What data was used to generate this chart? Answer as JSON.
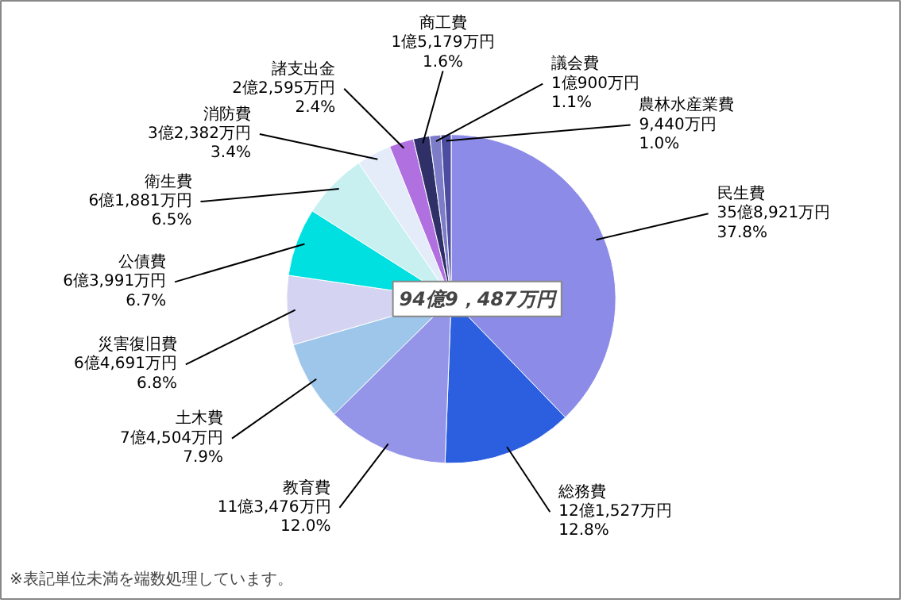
{
  "chart_data": {
    "type": "pie",
    "categories": [
      "民生費",
      "総務費",
      "教育費",
      "土木費",
      "災害復旧費",
      "公債費",
      "衛生費",
      "消防費",
      "諸支出金",
      "商工費",
      "議会費",
      "農林水産業費"
    ],
    "values": [
      37.8,
      12.8,
      12.0,
      7.9,
      6.8,
      6.7,
      6.5,
      3.4,
      2.4,
      1.6,
      1.1,
      1.0
    ],
    "value_labels": [
      "35億8,921万円\n37.8%",
      "12億1,527万円\n12.8%",
      "11億3,476万円\n12.0%",
      "7億4,504万円\n7.9%",
      "6億4,691万円\n6.8%",
      "6億3,991万円\n6.7%",
      "6億1,881万円\n6.5%",
      "3億2,382万円\n3.4%",
      "2億2,595万円\n2.4%",
      "1億5,179万円\n1.6%",
      "1億900万円\n1.1%",
      "9,440万円\n1.0%"
    ],
    "colors": [
      "#8c8ce8",
      "#2b5fe0",
      "#9494e8",
      "#9ec6ea",
      "#d4d4f2",
      "#00e0e0",
      "#c8f0f0",
      "#e4ecfa",
      "#b070e0",
      "#303068",
      "#7c7cc8",
      "#4c4ca0"
    ],
    "annotations": [
      "94億9，487万円",
      "※表記単位未満を端数処理しています。"
    ]
  }
}
